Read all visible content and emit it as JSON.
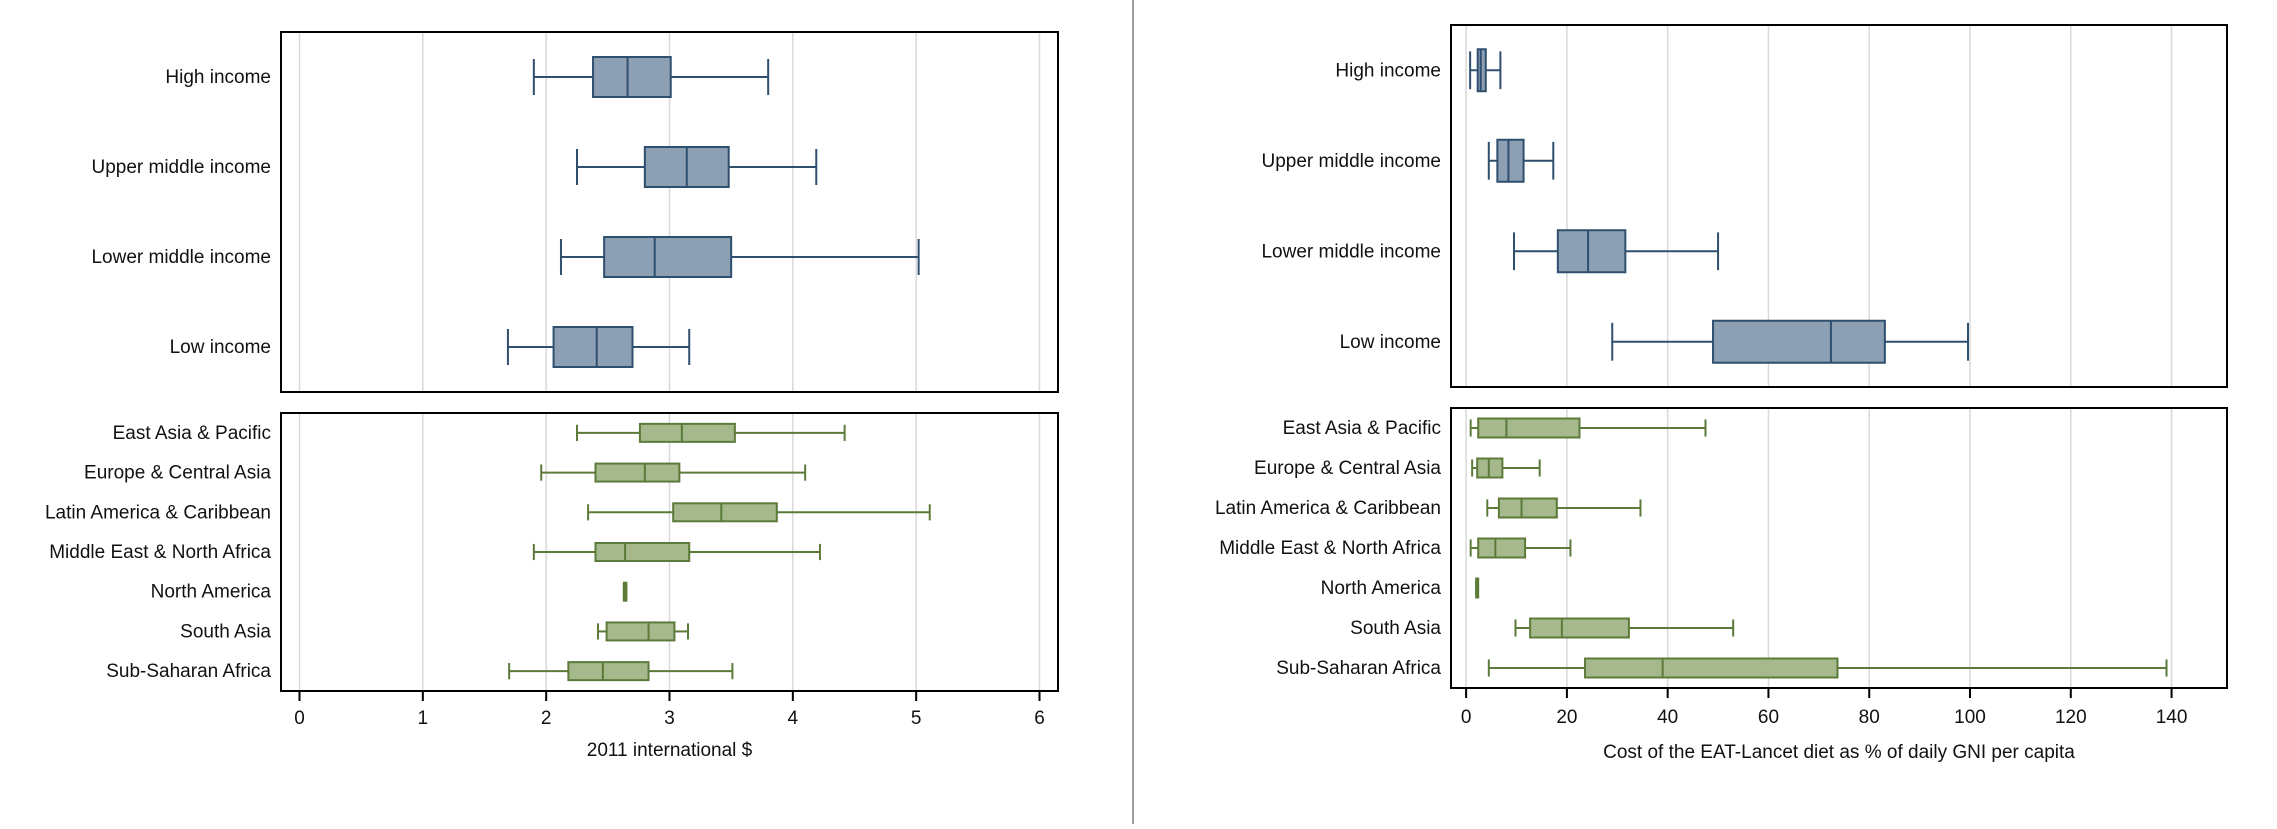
{
  "colors": {
    "income_fill": "#8da0b3",
    "income_stroke": "#2f4f6f",
    "region_fill": "#a6b98d",
    "region_stroke": "#5c7a3a",
    "grid": "#d9d9d9",
    "frame": "#000000",
    "divider": "#808080",
    "text": "#111111"
  },
  "chart_data": [
    {
      "type": "box",
      "xlabel": "2011 international $",
      "xlim": [
        -0.15,
        6.15
      ],
      "ticks": [
        "0",
        "1",
        "2",
        "3",
        "4",
        "5",
        "6"
      ],
      "tick_values": [
        0,
        1,
        2,
        3,
        4,
        5,
        6
      ],
      "grid": true,
      "panels": [
        {
          "group": "income",
          "categories": [
            "High income",
            "Upper middle income",
            "Lower middle income",
            "Low income"
          ],
          "boxes": [
            {
              "min": 1.9,
              "q1": 2.38,
              "median": 2.66,
              "q3": 3.01,
              "max": 3.8
            },
            {
              "min": 2.25,
              "q1": 2.8,
              "median": 3.14,
              "q3": 3.48,
              "max": 4.19
            },
            {
              "min": 2.12,
              "q1": 2.47,
              "median": 2.88,
              "q3": 3.5,
              "max": 5.02
            },
            {
              "min": 1.69,
              "q1": 2.06,
              "median": 2.41,
              "q3": 2.7,
              "max": 3.16
            }
          ]
        },
        {
          "group": "region",
          "categories": [
            "East Asia & Pacific",
            "Europe & Central Asia",
            "Latin America & Caribbean",
            "Middle East & North Africa",
            "North America",
            "South Asia",
            "Sub-Saharan Africa"
          ],
          "boxes": [
            {
              "min": 2.25,
              "q1": 2.76,
              "median": 3.1,
              "q3": 3.53,
              "max": 4.42
            },
            {
              "min": 1.96,
              "q1": 2.4,
              "median": 2.8,
              "q3": 3.08,
              "max": 4.1
            },
            {
              "min": 2.34,
              "q1": 3.03,
              "median": 3.42,
              "q3": 3.87,
              "max": 5.11
            },
            {
              "min": 1.9,
              "q1": 2.4,
              "median": 2.64,
              "q3": 3.16,
              "max": 4.22
            },
            {
              "min": 2.63,
              "q1": 2.63,
              "median": 2.64,
              "q3": 2.65,
              "max": 2.65
            },
            {
              "min": 2.42,
              "q1": 2.49,
              "median": 2.83,
              "q3": 3.04,
              "max": 3.15
            },
            {
              "min": 1.7,
              "q1": 2.18,
              "median": 2.46,
              "q3": 2.83,
              "max": 3.51
            }
          ]
        }
      ]
    },
    {
      "type": "box",
      "xlabel": "Cost of the EAT-Lancet diet as % of daily GNI per capita",
      "xlim": [
        -3,
        151
      ],
      "ticks": [
        "0",
        "20",
        "40",
        "60",
        "80",
        "100",
        "120",
        "140"
      ],
      "tick_values": [
        0,
        20,
        40,
        60,
        80,
        100,
        120,
        140
      ],
      "grid": true,
      "panels": [
        {
          "group": "income",
          "categories": [
            "High income",
            "Upper middle income",
            "Lower middle income",
            "Low income"
          ],
          "boxes": [
            {
              "min": 0.8,
              "q1": 2.3,
              "median": 2.9,
              "q3": 3.9,
              "max": 6.8
            },
            {
              "min": 4.5,
              "q1": 6.2,
              "median": 8.4,
              "q3": 11.4,
              "max": 17.3
            },
            {
              "min": 9.5,
              "q1": 18.2,
              "median": 24.2,
              "q3": 31.6,
              "max": 50.0
            },
            {
              "min": 29.0,
              "q1": 49.0,
              "median": 72.4,
              "q3": 83.1,
              "max": 99.6
            }
          ]
        },
        {
          "group": "region",
          "categories": [
            "East Asia & Pacific",
            "Europe & Central Asia",
            "Latin America & Caribbean",
            "Middle East & North Africa",
            "North America",
            "South Asia",
            "Sub-Saharan Africa"
          ],
          "boxes": [
            {
              "min": 0.9,
              "q1": 2.4,
              "median": 8.0,
              "q3": 22.5,
              "max": 47.5
            },
            {
              "min": 1.2,
              "q1": 2.2,
              "median": 4.5,
              "q3": 7.2,
              "max": 14.6
            },
            {
              "min": 4.2,
              "q1": 6.5,
              "median": 11.0,
              "q3": 18.0,
              "max": 34.6
            },
            {
              "min": 0.9,
              "q1": 2.4,
              "median": 5.8,
              "q3": 11.7,
              "max": 20.7
            },
            {
              "min": 2.0,
              "q1": 2.0,
              "median": 2.1,
              "q3": 2.2,
              "max": 2.2
            },
            {
              "min": 9.8,
              "q1": 12.7,
              "median": 19.0,
              "q3": 32.3,
              "max": 53.0
            },
            {
              "min": 4.5,
              "q1": 23.6,
              "median": 39.0,
              "q3": 73.7,
              "max": 139.0
            }
          ]
        }
      ]
    }
  ]
}
